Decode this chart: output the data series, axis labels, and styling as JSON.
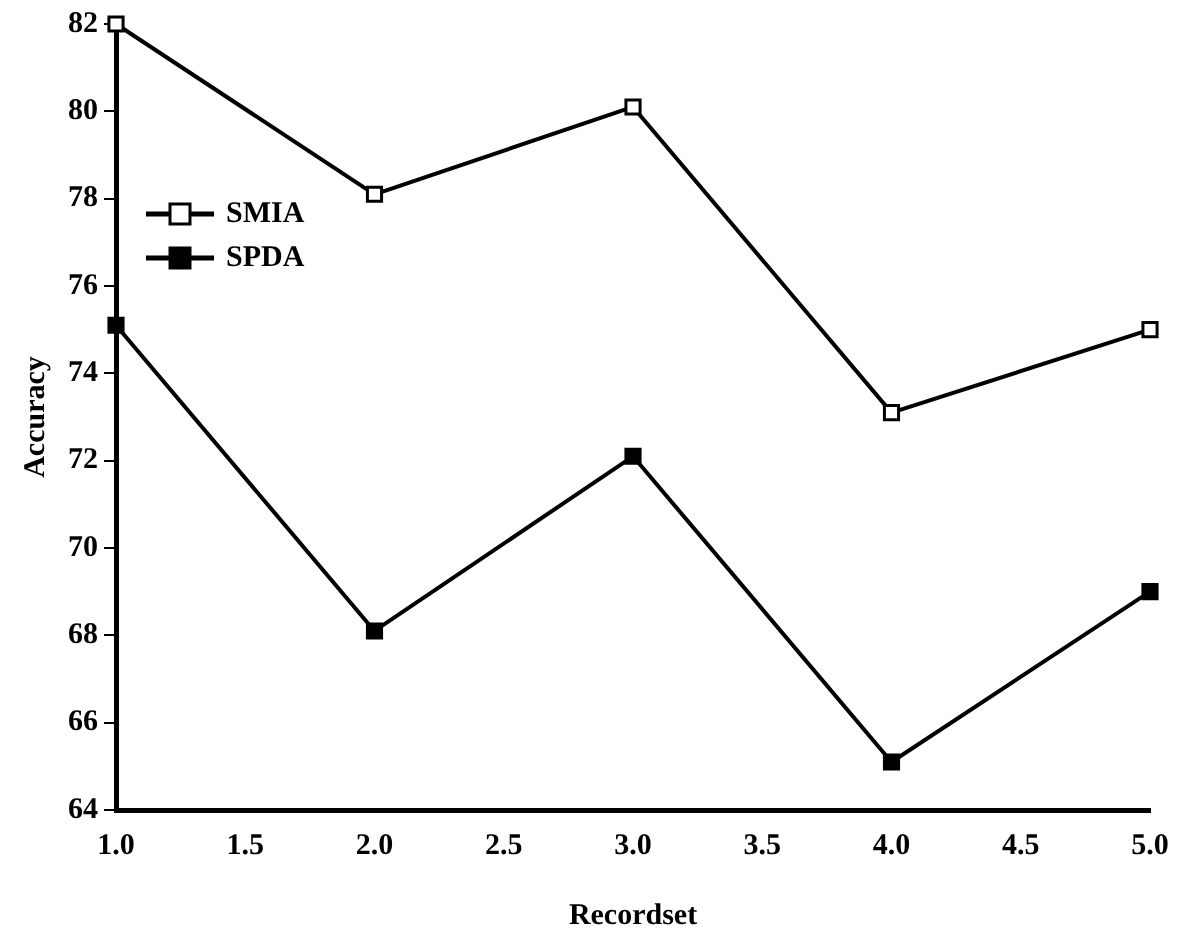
{
  "chart_data": {
    "type": "line",
    "xlabel": "Recordset",
    "ylabel": "Accuracy",
    "x": [
      1,
      2,
      3,
      4,
      5
    ],
    "series": [
      {
        "name": "SMIA",
        "color": "#000000",
        "values": [
          82,
          78.1,
          80.1,
          73.1,
          75
        ]
      },
      {
        "name": "SPDA",
        "color": "#000000",
        "values": [
          75.1,
          68.1,
          72.1,
          65.1,
          69
        ]
      }
    ],
    "xlim": [
      1,
      5
    ],
    "xticks": [
      {
        "value": 1,
        "label": "1.0"
      },
      {
        "value": 1.5,
        "label": "1.5"
      },
      {
        "value": 2,
        "label": "2.0"
      },
      {
        "value": 2.5,
        "label": "2.5"
      },
      {
        "value": 3,
        "label": "3.0"
      },
      {
        "value": 3.5,
        "label": "3.5"
      },
      {
        "value": 4,
        "label": "4.0"
      },
      {
        "value": 4.5,
        "label": "4.5"
      },
      {
        "value": 5,
        "label": "5.0"
      }
    ],
    "ylim": [
      64,
      82
    ],
    "yticks": [
      64,
      66,
      68,
      70,
      72,
      74,
      76,
      78,
      80,
      82
    ],
    "grid": false,
    "legend": "top left",
    "marker": "square",
    "line_style": "solid"
  }
}
